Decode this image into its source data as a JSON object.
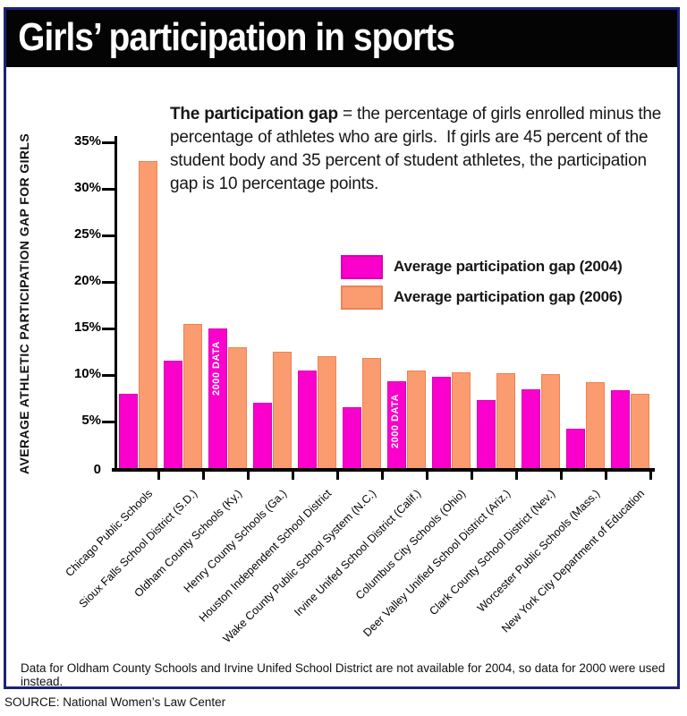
{
  "title": "Girls’ participation in sports",
  "description": {
    "lead": "The participation gap",
    "body": " = the percentage of girls enrolled minus the percentage of athletes who are girls.  If girls are 45 percent of the student body and 35 percent of student athletes, the participation gap is 10 percentage points."
  },
  "legend": [
    {
      "label": "Average participation gap (2004)",
      "color": "#fb00cc",
      "border_color": "#d900b0"
    },
    {
      "label": "Average participation gap (2006)",
      "color": "#fb9b70",
      "border_color": "#ef8251"
    }
  ],
  "footnote": "Data for Oldham County Schools and Irvine Unifed School District are not available for 2004, so data for 2000 were used instead.",
  "source": "SOURCE: National Women’s Law Center",
  "chart_data": {
    "type": "bar",
    "title": "Girls’ participation in sports",
    "ylabel": "AVERAGE ATHLETIC PARTICIPATION GAP FOR GIRLS",
    "xlabel": "",
    "ylim": [
      0,
      36
    ],
    "grid": false,
    "legend_position": "upper right",
    "y_ticks": [
      "35%",
      "30%",
      "25%",
      "20%",
      "15%",
      "10%",
      "5%"
    ],
    "y_base_label": "0",
    "categories": [
      "Chicago Public Schools",
      "Sioux Falls School District (S.D.)",
      "Oldham County Schools (Ky.)",
      "Henry County Schools (Ga.)",
      "Houston Independent School District",
      "Wake County Public School System (N.C.)",
      "Irvine Unifed School District (Calif.)",
      "Columbus City Schools (Ohio)",
      "Deer Valley Unified School District (Ariz.)",
      "Clark County School District (Nev.)",
      "Worcester Public Schools (Mass.)",
      "New York City Department of Education"
    ],
    "series": [
      {
        "name": "Average participation gap (2004)",
        "color": "#fb00cc",
        "border_color": "#d900b0",
        "values": [
          8,
          11.5,
          15,
          7,
          10.5,
          6.5,
          9.3,
          9.8,
          7.3,
          8.5,
          4.2,
          8.4
        ]
      },
      {
        "name": "Average participation gap (2006)",
        "color": "#fb9b70",
        "border_color": "#ef8251",
        "values": [
          33,
          15.5,
          13,
          12.5,
          12,
          11.8,
          10.5,
          10.3,
          10.2,
          10.1,
          9.2,
          8
        ]
      }
    ],
    "annotations": [
      {
        "category_index": 2,
        "series_index": 0,
        "text": "2000 DATA"
      },
      {
        "category_index": 6,
        "series_index": 0,
        "text": "2000 DATA"
      }
    ]
  }
}
